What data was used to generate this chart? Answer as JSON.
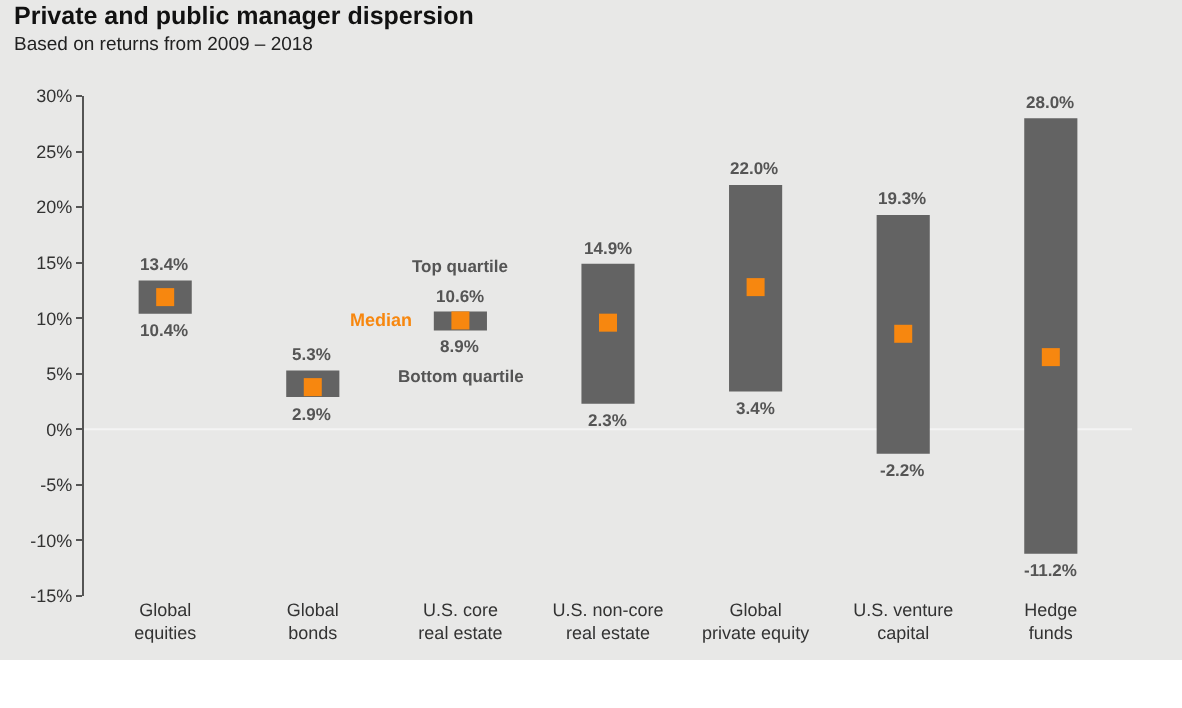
{
  "chart_data": {
    "type": "bar",
    "title": "Private and public manager dispersion",
    "subtitle": "Based on returns from 2009 – 2018",
    "categories": [
      "Global\nequities",
      "Global\nbonds",
      "U.S. core\nreal estate",
      "U.S. non-core\nreal estate",
      "Global\nprivate equity",
      "U.S. venture\ncapital",
      "Hedge\nfunds"
    ],
    "series": [
      {
        "color": "#636363",
        "base": [
          10.4,
          2.9,
          8.9,
          2.3,
          3.4,
          -2.2,
          -11.2
        ],
        "values": [
          3.0,
          2.4,
          1.7,
          12.6,
          18.6,
          21.5,
          39.2
        ]
      },
      {
        "type": "scatter",
        "name": "Median",
        "marker": "square",
        "color": "#f7870f",
        "values": [
          11.9,
          3.8,
          9.8,
          9.6,
          12.8,
          8.6,
          6.5
        ]
      }
    ],
    "ylim": [
      -15,
      30
    ],
    "yticks": [
      {
        "value": -15,
        "label": "-15%"
      },
      {
        "value": -10,
        "label": "-10%"
      },
      {
        "value": -5,
        "label": "-5%"
      },
      {
        "value": 0,
        "label": "0%"
      },
      {
        "value": 5,
        "label": "5%"
      },
      {
        "value": 10,
        "label": "10%"
      },
      {
        "value": 15,
        "label": "15%"
      },
      {
        "value": 20,
        "label": "20%"
      },
      {
        "value": 25,
        "label": "25%"
      },
      {
        "value": 30,
        "label": "30%"
      }
    ],
    "ref_lines": [
      {
        "axis": "y",
        "value": 0,
        "color": "#f4f4f4"
      }
    ],
    "grid": false,
    "legend": false,
    "annotations": [
      {
        "text": "13.4%",
        "x": "Global\nequities",
        "y": 13.4
      },
      {
        "text": "10.4%",
        "x": "Global\nequities",
        "y": 10.4
      },
      {
        "text": "5.3%",
        "x": "Global\nbonds",
        "y": 5.3
      },
      {
        "text": "2.9%",
        "x": "Global\nbonds",
        "y": 2.9
      },
      "Top quartile",
      {
        "text": "10.6%",
        "x": "U.S. core\nreal estate",
        "y": 10.6
      },
      {
        "text": "8.9%",
        "x": "U.S. core\nreal estate",
        "y": 8.9
      },
      "Bottom quartile",
      {
        "text": "14.9%",
        "x": "U.S. non-core\nreal estate",
        "y": 14.9
      },
      {
        "text": "2.3%",
        "x": "U.S. non-core\nreal estate",
        "y": 2.3
      },
      {
        "text": "22.0%",
        "x": "Global\nprivate equity",
        "y": 22.0
      },
      {
        "text": "3.4%",
        "x": "Global\nprivate equity",
        "y": 3.4
      },
      {
        "text": "19.3%",
        "x": "U.S. venture\ncapital",
        "y": 19.3
      },
      {
        "text": "-2.2%",
        "x": "U.S. venture\ncapital",
        "y": -2.2
      },
      {
        "text": "28.0%",
        "x": "Hedge\nfunds",
        "y": 28.0
      },
      {
        "text": "-11.2%",
        "x": "Hedge\nfunds",
        "y": -11.2
      }
    ]
  }
}
